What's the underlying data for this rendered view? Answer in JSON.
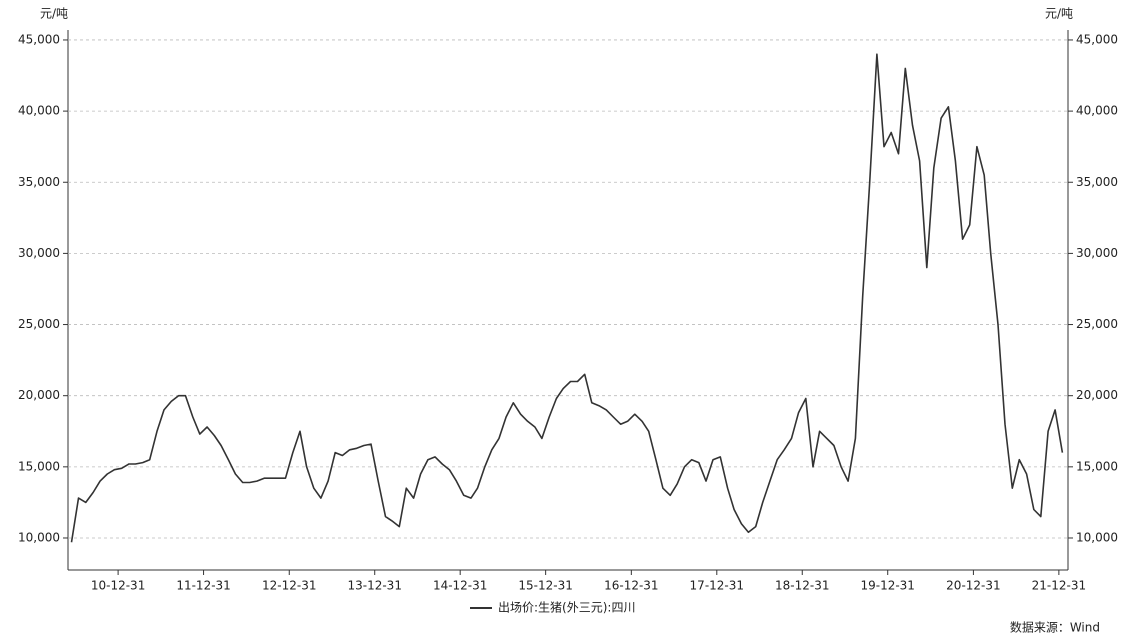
{
  "chart_data": {
    "type": "line",
    "y_label": "元/吨",
    "y2_label": "元/吨",
    "source": "数据来源：Wind",
    "grid": true,
    "x": [
      "10-06-15",
      "10-07-15",
      "10-08-15",
      "10-09-15",
      "10-10-15",
      "10-11-15",
      "10-12-15",
      "11-01-15",
      "11-02-15",
      "11-03-15",
      "11-04-15",
      "11-05-15",
      "11-06-15",
      "11-07-15",
      "11-08-15",
      "11-09-15",
      "11-10-15",
      "11-11-15",
      "11-12-15",
      "12-01-15",
      "12-02-15",
      "12-03-15",
      "12-04-15",
      "12-05-15",
      "12-06-15",
      "12-07-15",
      "12-08-15",
      "12-09-15",
      "12-10-15",
      "12-11-15",
      "12-12-15",
      "13-01-15",
      "13-02-15",
      "13-03-15",
      "13-04-15",
      "13-05-15",
      "13-06-15",
      "13-07-15",
      "13-08-15",
      "13-09-15",
      "13-10-15",
      "13-11-15",
      "13-12-15",
      "14-01-15",
      "14-02-15",
      "14-03-15",
      "14-04-15",
      "14-05-15",
      "14-06-15",
      "14-07-15",
      "14-08-15",
      "14-09-15",
      "14-10-15",
      "14-11-15",
      "14-12-15",
      "15-01-15",
      "15-02-15",
      "15-03-15",
      "15-04-15",
      "15-05-15",
      "15-06-15",
      "15-07-15",
      "15-08-15",
      "15-09-15",
      "15-10-15",
      "15-11-15",
      "15-12-15",
      "16-01-15",
      "16-02-15",
      "16-03-15",
      "16-04-15",
      "16-05-15",
      "16-06-15",
      "16-07-15",
      "16-08-15",
      "16-09-15",
      "16-10-15",
      "16-11-15",
      "16-12-15",
      "17-01-15",
      "17-02-15",
      "17-03-15",
      "17-04-15",
      "17-05-15",
      "17-06-15",
      "17-07-15",
      "17-08-15",
      "17-09-15",
      "17-10-15",
      "17-11-15",
      "17-12-15",
      "18-01-15",
      "18-02-15",
      "18-03-15",
      "18-04-15",
      "18-05-15",
      "18-06-15",
      "18-07-15",
      "18-08-15",
      "18-09-15",
      "18-10-15",
      "18-11-15",
      "18-12-15",
      "19-01-15",
      "19-02-15",
      "19-03-15",
      "19-04-15",
      "19-05-15",
      "19-06-15",
      "19-07-15",
      "19-08-15",
      "19-09-15",
      "19-10-15",
      "19-11-15",
      "19-12-15",
      "20-01-15",
      "20-02-15",
      "20-03-15",
      "20-04-15",
      "20-05-15",
      "20-06-15",
      "20-07-15",
      "20-08-15",
      "20-09-15",
      "20-10-15",
      "20-11-15",
      "20-12-15",
      "21-01-15",
      "21-02-15",
      "21-03-15",
      "21-04-15",
      "21-05-15",
      "21-06-15",
      "21-07-15",
      "21-08-15",
      "21-09-15",
      "21-10-15",
      "21-11-15",
      "21-12-15",
      "22-01-15"
    ],
    "series": [
      {
        "name": "出场价:生猪(外三元):四川",
        "color": "#333333",
        "values": [
          9700,
          12800,
          12500,
          13200,
          14000,
          14500,
          14800,
          14900,
          15200,
          15200,
          15300,
          15500,
          17500,
          19000,
          19600,
          20000,
          20000,
          18500,
          17300,
          17800,
          17200,
          16500,
          15500,
          14500,
          13900,
          13900,
          14000,
          14200,
          14200,
          14200,
          14200,
          16000,
          17500,
          15000,
          13500,
          12800,
          14000,
          16000,
          15800,
          16200,
          16300,
          16500,
          16600,
          14000,
          11500,
          11200,
          10800,
          13500,
          12800,
          14500,
          15500,
          15700,
          15200,
          14800,
          14000,
          13000,
          12800,
          13500,
          15000,
          16200,
          17000,
          18500,
          19500,
          18700,
          18200,
          17800,
          17000,
          18500,
          19800,
          20500,
          21000,
          21000,
          21500,
          19500,
          19300,
          19000,
          18500,
          18000,
          18200,
          18700,
          18200,
          17500,
          15500,
          13500,
          13000,
          13800,
          15000,
          15500,
          15300,
          14000,
          15500,
          15700,
          13500,
          12000,
          11000,
          10400,
          10800,
          12500,
          14000,
          15500,
          16200,
          17000,
          18800,
          19800,
          15000,
          17500,
          17000,
          16500,
          15000,
          14000,
          17000,
          27000,
          35000,
          44000,
          37500,
          38500,
          37000,
          43000,
          39000,
          36500,
          29000,
          36000,
          39500,
          40300,
          36500,
          31000,
          32000,
          37500,
          35500,
          30000,
          25000,
          18000,
          13500,
          15500,
          14500,
          12000,
          11500,
          17500,
          19000,
          16000
        ]
      }
    ],
    "xlim": [
      "10-05-31",
      "22-02-08"
    ],
    "xticks": [
      "10-12-31",
      "11-12-31",
      "12-12-31",
      "13-12-31",
      "14-12-31",
      "15-12-31",
      "16-12-31",
      "17-12-31",
      "18-12-31",
      "19-12-31",
      "20-12-31",
      "21-12-31"
    ],
    "ylim": [
      7750,
      45700
    ],
    "yticks": [
      {
        "value": 10000,
        "label": "10,000"
      },
      {
        "value": 15000,
        "label": "15,000"
      },
      {
        "value": 20000,
        "label": "20,000"
      },
      {
        "value": 25000,
        "label": "25,000"
      },
      {
        "value": 30000,
        "label": "30,000"
      },
      {
        "value": 35000,
        "label": "35,000"
      },
      {
        "value": 40000,
        "label": "40,000"
      },
      {
        "value": 45000,
        "label": "45,000"
      }
    ],
    "y2lim": [
      7750,
      45700
    ],
    "y2ticks": [
      {
        "value": 10000,
        "label": "10,000"
      },
      {
        "value": 15000,
        "label": "15,000"
      },
      {
        "value": 20000,
        "label": "20,000"
      },
      {
        "value": 25000,
        "label": "25,000"
      },
      {
        "value": 30000,
        "label": "30,000"
      },
      {
        "value": 35000,
        "label": "35,000"
      },
      {
        "value": 40000,
        "label": "40,000"
      },
      {
        "value": 45000,
        "label": "45,000"
      }
    ]
  }
}
